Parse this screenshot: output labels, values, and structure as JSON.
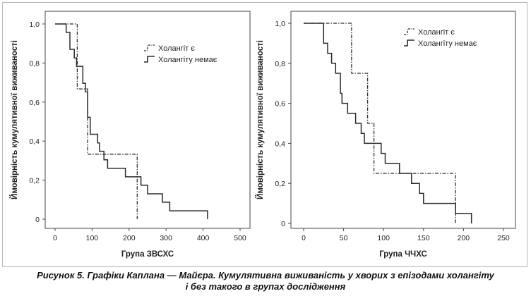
{
  "chart_data": [
    {
      "type": "line",
      "title": "",
      "xlabel": "Група ЗВСХС",
      "ylabel": "Ймовірність кумулятивної виживаності",
      "xlim": [
        0,
        500
      ],
      "ylim": [
        0,
        1
      ],
      "xticks": [
        "0",
        "100",
        "200",
        "300",
        "400",
        "500"
      ],
      "yticks": [
        "0",
        "0,2",
        "0,4",
        "0,6",
        "0,8",
        "1,0"
      ],
      "legend_position": "top-right",
      "grid": false,
      "series": [
        {
          "name": "Холангіт є",
          "style": "dash-dot",
          "points": [
            [
              0,
              1
            ],
            [
              60,
              1
            ],
            [
              60,
              0.667
            ],
            [
              88,
              0.667
            ],
            [
              88,
              0.333
            ],
            [
              222,
              0.333
            ],
            [
              222,
              0
            ]
          ]
        },
        {
          "name": "Холангіту немає",
          "style": "solid",
          "points": [
            [
              0,
              1
            ],
            [
              30,
              1
            ],
            [
              30,
              0.957
            ],
            [
              40,
              0.957
            ],
            [
              40,
              0.87
            ],
            [
              52,
              0.87
            ],
            [
              52,
              0.826
            ],
            [
              58,
              0.826
            ],
            [
              58,
              0.783
            ],
            [
              75,
              0.783
            ],
            [
              75,
              0.696
            ],
            [
              82,
              0.696
            ],
            [
              82,
              0.652
            ],
            [
              88,
              0.652
            ],
            [
              88,
              0.522
            ],
            [
              95,
              0.522
            ],
            [
              95,
              0.435
            ],
            [
              115,
              0.435
            ],
            [
              115,
              0.391
            ],
            [
              120,
              0.391
            ],
            [
              120,
              0.348
            ],
            [
              132,
              0.348
            ],
            [
              132,
              0.304
            ],
            [
              142,
              0.304
            ],
            [
              142,
              0.261
            ],
            [
              190,
              0.261
            ],
            [
              190,
              0.217
            ],
            [
              232,
              0.217
            ],
            [
              232,
              0.174
            ],
            [
              250,
              0.174
            ],
            [
              250,
              0.13
            ],
            [
              290,
              0.13
            ],
            [
              290,
              0.087
            ],
            [
              310,
              0.087
            ],
            [
              310,
              0.043
            ],
            [
              412,
              0.043
            ],
            [
              412,
              0
            ]
          ]
        }
      ]
    },
    {
      "type": "line",
      "title": "",
      "xlabel": "Група ЧЧХС",
      "ylabel": "Ймовірність кумулятивної виживаності",
      "xlim": [
        0,
        250
      ],
      "ylim": [
        0,
        1
      ],
      "xticks": [
        "0",
        "50",
        "100",
        "150",
        "200",
        "250"
      ],
      "yticks": [
        "0",
        "0,2",
        "0,4",
        "0,6",
        "0,8",
        "1,0"
      ],
      "legend_position": "top-right",
      "grid": false,
      "series": [
        {
          "name": "Холангіт є",
          "style": "dash-dot",
          "points": [
            [
              0,
              1
            ],
            [
              60,
              1
            ],
            [
              60,
              0.75
            ],
            [
              80,
              0.75
            ],
            [
              80,
              0.5
            ],
            [
              88,
              0.5
            ],
            [
              88,
              0.25
            ],
            [
              190,
              0.25
            ],
            [
              190,
              0
            ]
          ]
        },
        {
          "name": "Холангіту немає",
          "style": "solid",
          "points": [
            [
              0,
              1
            ],
            [
              25,
              1
            ],
            [
              25,
              0.9
            ],
            [
              30,
              0.9
            ],
            [
              30,
              0.85
            ],
            [
              35,
              0.85
            ],
            [
              35,
              0.8
            ],
            [
              40,
              0.8
            ],
            [
              40,
              0.75
            ],
            [
              46,
              0.75
            ],
            [
              46,
              0.65
            ],
            [
              48,
              0.65
            ],
            [
              48,
              0.6
            ],
            [
              55,
              0.6
            ],
            [
              55,
              0.55
            ],
            [
              65,
              0.55
            ],
            [
              65,
              0.5
            ],
            [
              72,
              0.5
            ],
            [
              72,
              0.45
            ],
            [
              76,
              0.45
            ],
            [
              76,
              0.4
            ],
            [
              97,
              0.4
            ],
            [
              97,
              0.35
            ],
            [
              102,
              0.35
            ],
            [
              102,
              0.3
            ],
            [
              120,
              0.3
            ],
            [
              120,
              0.25
            ],
            [
              135,
              0.25
            ],
            [
              135,
              0.2
            ],
            [
              145,
              0.2
            ],
            [
              145,
              0.15
            ],
            [
              150,
              0.15
            ],
            [
              150,
              0.1
            ],
            [
              190,
              0.1
            ],
            [
              190,
              0.05
            ],
            [
              210,
              0.05
            ],
            [
              210,
              0
            ]
          ]
        }
      ]
    }
  ],
  "caption": {
    "line1": "Рисунок 5. Графіки Каплана — Майєра. Кумулятивна виживаність у хворих з епізодами холангіту",
    "line2": "і без такого в групах дослідження"
  }
}
